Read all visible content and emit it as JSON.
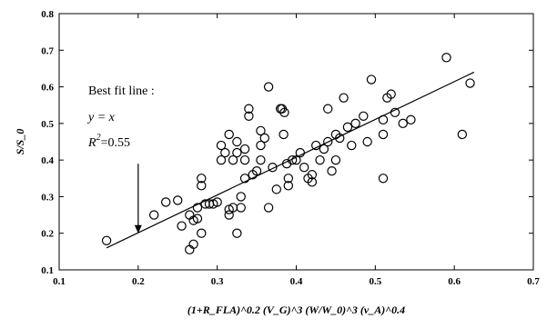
{
  "chart_data": {
    "type": "scatter",
    "title": "",
    "xlabel": "(1+R_FLA)^0.2 (V_G)^3 (W/W_0)^3 (v_A)^0.4",
    "ylabel": "S/S_0",
    "xlim": [
      0.1,
      0.7
    ],
    "ylim": [
      0.1,
      0.8
    ],
    "x_ticks": [
      "0.1",
      "0.2",
      "0.3",
      "0.4",
      "0.5",
      "0.6",
      "0.7"
    ],
    "y_ticks": [
      "0.1",
      "0.2",
      "0.3",
      "0.4",
      "0.5",
      "0.6",
      "0.7",
      "0.8"
    ],
    "grid": false,
    "marker": "open-circle",
    "fit_line": {
      "label": "y = x",
      "x": [
        0.16,
        0.625
      ],
      "y": [
        0.16,
        0.64
      ]
    },
    "annotation": {
      "line1": "Best fit line :",
      "line2": "y = x",
      "line3_prefix": "R",
      "line3_sup": "2",
      "line3_value": "=0.55",
      "arrow_x": 0.2,
      "arrow_y_from": 0.39,
      "arrow_y_to": 0.2
    },
    "points": [
      {
        "x": 0.16,
        "y": 0.18
      },
      {
        "x": 0.22,
        "y": 0.25
      },
      {
        "x": 0.235,
        "y": 0.285
      },
      {
        "x": 0.25,
        "y": 0.29
      },
      {
        "x": 0.255,
        "y": 0.22
      },
      {
        "x": 0.265,
        "y": 0.25
      },
      {
        "x": 0.265,
        "y": 0.155
      },
      {
        "x": 0.27,
        "y": 0.17
      },
      {
        "x": 0.27,
        "y": 0.235
      },
      {
        "x": 0.275,
        "y": 0.24
      },
      {
        "x": 0.275,
        "y": 0.27
      },
      {
        "x": 0.28,
        "y": 0.33
      },
      {
        "x": 0.28,
        "y": 0.35
      },
      {
        "x": 0.28,
        "y": 0.2
      },
      {
        "x": 0.285,
        "y": 0.28
      },
      {
        "x": 0.29,
        "y": 0.28
      },
      {
        "x": 0.295,
        "y": 0.28
      },
      {
        "x": 0.3,
        "y": 0.285
      },
      {
        "x": 0.305,
        "y": 0.44
      },
      {
        "x": 0.305,
        "y": 0.4
      },
      {
        "x": 0.31,
        "y": 0.42
      },
      {
        "x": 0.315,
        "y": 0.265
      },
      {
        "x": 0.315,
        "y": 0.25
      },
      {
        "x": 0.315,
        "y": 0.47
      },
      {
        "x": 0.32,
        "y": 0.4
      },
      {
        "x": 0.32,
        "y": 0.27
      },
      {
        "x": 0.325,
        "y": 0.2
      },
      {
        "x": 0.325,
        "y": 0.45
      },
      {
        "x": 0.325,
        "y": 0.42
      },
      {
        "x": 0.33,
        "y": 0.3
      },
      {
        "x": 0.33,
        "y": 0.27
      },
      {
        "x": 0.335,
        "y": 0.35
      },
      {
        "x": 0.335,
        "y": 0.4
      },
      {
        "x": 0.335,
        "y": 0.43
      },
      {
        "x": 0.34,
        "y": 0.52
      },
      {
        "x": 0.34,
        "y": 0.54
      },
      {
        "x": 0.345,
        "y": 0.36
      },
      {
        "x": 0.35,
        "y": 0.37
      },
      {
        "x": 0.355,
        "y": 0.4
      },
      {
        "x": 0.355,
        "y": 0.48
      },
      {
        "x": 0.355,
        "y": 0.44
      },
      {
        "x": 0.36,
        "y": 0.46
      },
      {
        "x": 0.365,
        "y": 0.6
      },
      {
        "x": 0.365,
        "y": 0.27
      },
      {
        "x": 0.37,
        "y": 0.38
      },
      {
        "x": 0.375,
        "y": 0.32
      },
      {
        "x": 0.38,
        "y": 0.54
      },
      {
        "x": 0.382,
        "y": 0.54
      },
      {
        "x": 0.384,
        "y": 0.47
      },
      {
        "x": 0.385,
        "y": 0.53
      },
      {
        "x": 0.388,
        "y": 0.39
      },
      {
        "x": 0.39,
        "y": 0.35
      },
      {
        "x": 0.39,
        "y": 0.33
      },
      {
        "x": 0.395,
        "y": 0.4
      },
      {
        "x": 0.4,
        "y": 0.4
      },
      {
        "x": 0.405,
        "y": 0.42
      },
      {
        "x": 0.41,
        "y": 0.38
      },
      {
        "x": 0.415,
        "y": 0.35
      },
      {
        "x": 0.42,
        "y": 0.36
      },
      {
        "x": 0.42,
        "y": 0.34
      },
      {
        "x": 0.425,
        "y": 0.44
      },
      {
        "x": 0.43,
        "y": 0.4
      },
      {
        "x": 0.435,
        "y": 0.43
      },
      {
        "x": 0.44,
        "y": 0.54
      },
      {
        "x": 0.44,
        "y": 0.45
      },
      {
        "x": 0.445,
        "y": 0.37
      },
      {
        "x": 0.45,
        "y": 0.4
      },
      {
        "x": 0.45,
        "y": 0.47
      },
      {
        "x": 0.455,
        "y": 0.46
      },
      {
        "x": 0.46,
        "y": 0.57
      },
      {
        "x": 0.465,
        "y": 0.49
      },
      {
        "x": 0.47,
        "y": 0.44
      },
      {
        "x": 0.475,
        "y": 0.5
      },
      {
        "x": 0.485,
        "y": 0.52
      },
      {
        "x": 0.49,
        "y": 0.45
      },
      {
        "x": 0.495,
        "y": 0.62
      },
      {
        "x": 0.51,
        "y": 0.47
      },
      {
        "x": 0.51,
        "y": 0.51
      },
      {
        "x": 0.51,
        "y": 0.35
      },
      {
        "x": 0.515,
        "y": 0.57
      },
      {
        "x": 0.52,
        "y": 0.58
      },
      {
        "x": 0.525,
        "y": 0.53
      },
      {
        "x": 0.535,
        "y": 0.5
      },
      {
        "x": 0.545,
        "y": 0.51
      },
      {
        "x": 0.59,
        "y": 0.68
      },
      {
        "x": 0.61,
        "y": 0.47
      },
      {
        "x": 0.62,
        "y": 0.61
      }
    ]
  }
}
